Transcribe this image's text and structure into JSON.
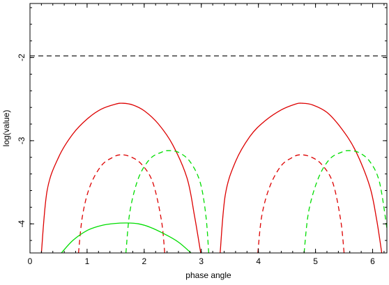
{
  "chart_data": {
    "type": "line",
    "xlabel": "phase angle",
    "ylabel": "log(value)",
    "xlim": [
      0,
      6.25
    ],
    "ylim": [
      -4.35,
      -1.35
    ],
    "x_ticks": [
      0,
      1,
      2,
      3,
      4,
      5,
      6
    ],
    "x_tick_labels": [
      "0",
      "1",
      "2",
      "3",
      "4",
      "5",
      "6"
    ],
    "y_ticks": [
      -2,
      -3,
      -4
    ],
    "y_tick_labels": [
      "-2",
      "-3",
      "-4"
    ],
    "grid": false,
    "legend": "none",
    "hlines": [
      {
        "y": -1.98,
        "color": "#000000",
        "dash": "dashed"
      }
    ],
    "series": [
      {
        "color": "#dd0000",
        "dash": "solid",
        "x": [
          0.2,
          0.3,
          0.5,
          0.75,
          1.0,
          1.25,
          1.5,
          1.63,
          1.8,
          2.0,
          2.25,
          2.5,
          2.75,
          2.88,
          2.99
        ],
        "y": [
          -4.35,
          -3.6,
          -3.2,
          -2.92,
          -2.74,
          -2.62,
          -2.56,
          -2.55,
          -2.57,
          -2.64,
          -2.8,
          -3.05,
          -3.45,
          -3.9,
          -4.35
        ]
      },
      {
        "color": "#dd0000",
        "dash": "solid",
        "x": [
          3.33,
          3.42,
          3.6,
          3.85,
          4.1,
          4.4,
          4.65,
          4.77,
          4.95,
          5.2,
          5.45,
          5.7,
          5.95,
          6.07,
          6.16
        ],
        "y": [
          -4.35,
          -3.65,
          -3.25,
          -2.95,
          -2.77,
          -2.63,
          -2.56,
          -2.55,
          -2.57,
          -2.66,
          -2.85,
          -3.12,
          -3.55,
          -3.95,
          -4.35
        ]
      },
      {
        "color": "#dd0000",
        "dash": "dashed",
        "x": [
          0.85,
          0.92,
          1.05,
          1.25,
          1.45,
          1.58,
          1.75,
          1.95,
          2.15,
          2.3,
          2.36
        ],
        "y": [
          -4.35,
          -3.9,
          -3.55,
          -3.3,
          -3.2,
          -3.17,
          -3.19,
          -3.28,
          -3.5,
          -3.95,
          -4.35
        ]
      },
      {
        "color": "#dd0000",
        "dash": "dashed",
        "x": [
          3.99,
          4.06,
          4.2,
          4.4,
          4.6,
          4.72,
          4.9,
          5.1,
          5.3,
          5.44,
          5.5
        ],
        "y": [
          -4.35,
          -3.9,
          -3.55,
          -3.3,
          -3.2,
          -3.17,
          -3.19,
          -3.28,
          -3.5,
          -3.95,
          -4.35
        ]
      },
      {
        "color": "#00dd00",
        "dash": "dashed",
        "x": [
          1.68,
          1.75,
          1.9,
          2.1,
          2.3,
          2.42,
          2.6,
          2.8,
          2.98,
          3.08,
          3.13
        ],
        "y": [
          -4.35,
          -3.85,
          -3.45,
          -3.22,
          -3.14,
          -3.12,
          -3.14,
          -3.25,
          -3.5,
          -3.9,
          -4.35
        ]
      },
      {
        "color": "#00dd00",
        "dash": "dashed",
        "x": [
          4.8,
          4.88,
          5.05,
          5.25,
          5.45,
          5.57,
          5.75,
          5.95,
          6.12,
          6.25
        ],
        "y": [
          -4.35,
          -3.85,
          -3.45,
          -3.22,
          -3.14,
          -3.12,
          -3.14,
          -3.25,
          -3.5,
          -4.05
        ]
      },
      {
        "color": "#00dd00",
        "dash": "solid",
        "x": [
          0.55,
          0.75,
          1.0,
          1.25,
          1.5,
          1.7,
          1.9,
          2.1,
          2.35,
          2.6,
          2.82
        ],
        "y": [
          -4.35,
          -4.2,
          -4.08,
          -4.02,
          -3.995,
          -3.99,
          -4.0,
          -4.04,
          -4.12,
          -4.22,
          -4.35
        ]
      }
    ]
  }
}
